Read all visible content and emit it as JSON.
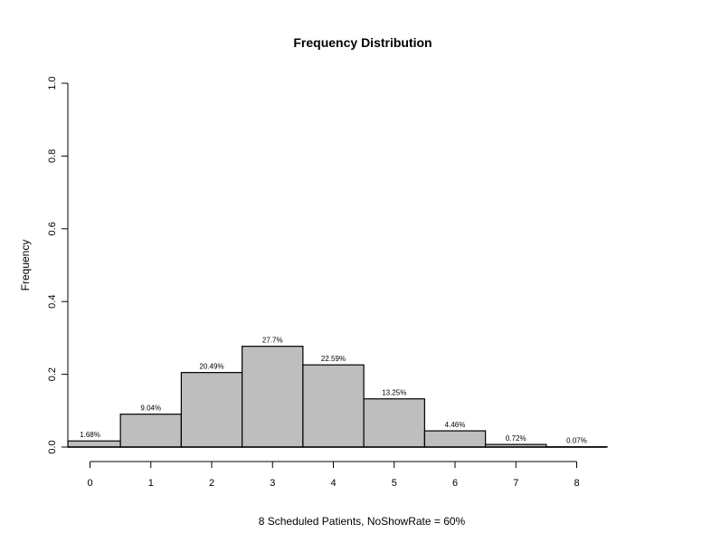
{
  "chart_data": {
    "type": "bar",
    "title": "Frequency Distribution",
    "xlabel": "8 Scheduled Patients,  NoShowRate = 60%",
    "ylabel": "Frequency",
    "categories": [
      "0",
      "1",
      "2",
      "3",
      "4",
      "5",
      "6",
      "7",
      "8"
    ],
    "values": [
      0.0168,
      0.0904,
      0.2049,
      0.277,
      0.2259,
      0.1325,
      0.0446,
      0.0072,
      0.0007
    ],
    "data_labels": [
      "1.68%",
      "9.04%",
      "20.49%",
      "27.7%",
      "22.59%",
      "13.25%",
      "4.46%",
      "0.72%",
      "0.07%"
    ],
    "ylim": [
      0,
      1.0
    ],
    "yticks": [
      "0.0",
      "0.2",
      "0.4",
      "0.6",
      "0.8",
      "1.0"
    ],
    "grid": false,
    "bar_color": "#bebebe"
  }
}
